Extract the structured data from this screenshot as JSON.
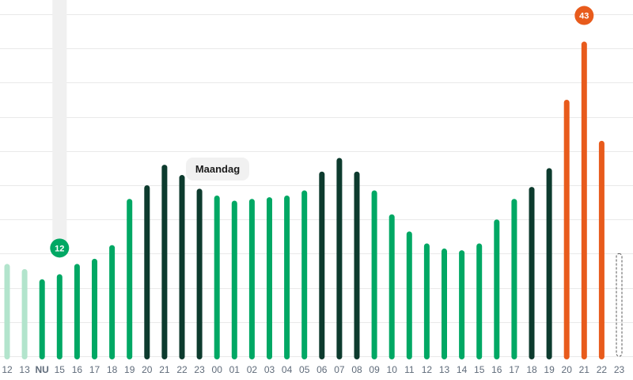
{
  "chart_data": {
    "type": "bar",
    "categories": [
      "12",
      "13",
      "NU",
      "15",
      "16",
      "17",
      "18",
      "19",
      "20",
      "21",
      "22",
      "23",
      "00",
      "01",
      "02",
      "03",
      "04",
      "05",
      "06",
      "07",
      "08",
      "09",
      "10",
      "11",
      "12",
      "13",
      "14",
      "15",
      "16",
      "17",
      "18",
      "19",
      "20",
      "21",
      "22",
      "23"
    ],
    "values": [
      27,
      25.5,
      22.5,
      24,
      27,
      28.5,
      32.5,
      46,
      50,
      56,
      53,
      49,
      47,
      45.5,
      46,
      46.5,
      47,
      48.5,
      54,
      58,
      54,
      48.5,
      41.5,
      36.5,
      33,
      31.5,
      31,
      33,
      40,
      46,
      49.5,
      55,
      75,
      92,
      63,
      30
    ],
    "series_styles": [
      "past",
      "past",
      "current",
      "normal",
      "normal",
      "normal",
      "normal",
      "normal",
      "peak",
      "peak",
      "peak",
      "peak",
      "normal",
      "normal",
      "normal",
      "normal",
      "normal",
      "normal",
      "peak",
      "peak",
      "peak",
      "normal",
      "normal",
      "normal",
      "normal",
      "normal",
      "normal",
      "normal",
      "normal",
      "normal",
      "peak",
      "peak",
      "high",
      "high",
      "high",
      "forecast"
    ],
    "ylim": [
      0,
      100
    ],
    "grid": true,
    "current_index": 2,
    "current_value": "12",
    "max_index": 33,
    "max_value": "43",
    "day_label": "Maandag",
    "colors": {
      "past": "#b2e4cc",
      "current": "#00a864",
      "normal": "#00a864",
      "peak": "#0d3b2e",
      "high": "#e85b1c",
      "forecast_outline": "#555555",
      "now_bar_bg": "#f0f0f0",
      "grid": "#e9e9e9",
      "tick": "#5f6b7a"
    }
  }
}
